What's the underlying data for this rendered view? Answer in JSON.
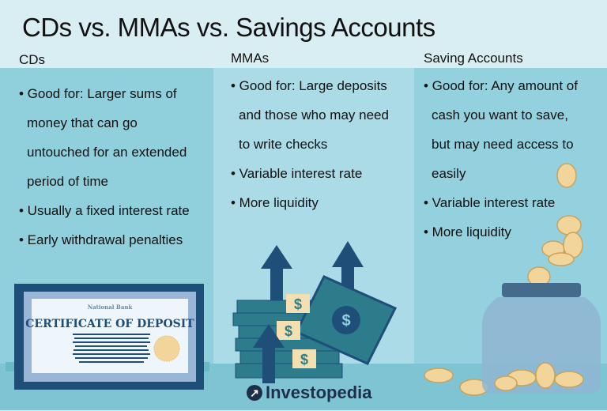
{
  "title": "CDs vs. MMAs vs. Savings Accounts",
  "columns": [
    {
      "heading": "CDs",
      "bullets": [
        "• Good for: Larger sums of",
        "money that can go",
        "untouched for an extended",
        "period of time",
        "• Usually a fixed interest rate",
        "• Early withdrawal penalties"
      ]
    },
    {
      "heading": "MMAs",
      "bullets": [
        "• Good for: Large deposits",
        "and those who may need",
        "to write checks",
        "• Variable interest rate",
        "• More liquidity"
      ]
    },
    {
      "heading": "Saving Accounts",
      "bullets": [
        "• Good for: Any amount of",
        "cash you want to save,",
        "but may need access to",
        "easily",
        "• Variable interest rate",
        "• More liquidity"
      ]
    }
  ],
  "certificate": {
    "bank": "National Bank",
    "title": "CERTIFICATE OF DEPOSIT"
  },
  "money_symbol": "$",
  "logo": "Investopedia",
  "colors": {
    "navy": "#1f4e79",
    "teal": "#2c7c8c",
    "coin": "#f2d59a"
  }
}
